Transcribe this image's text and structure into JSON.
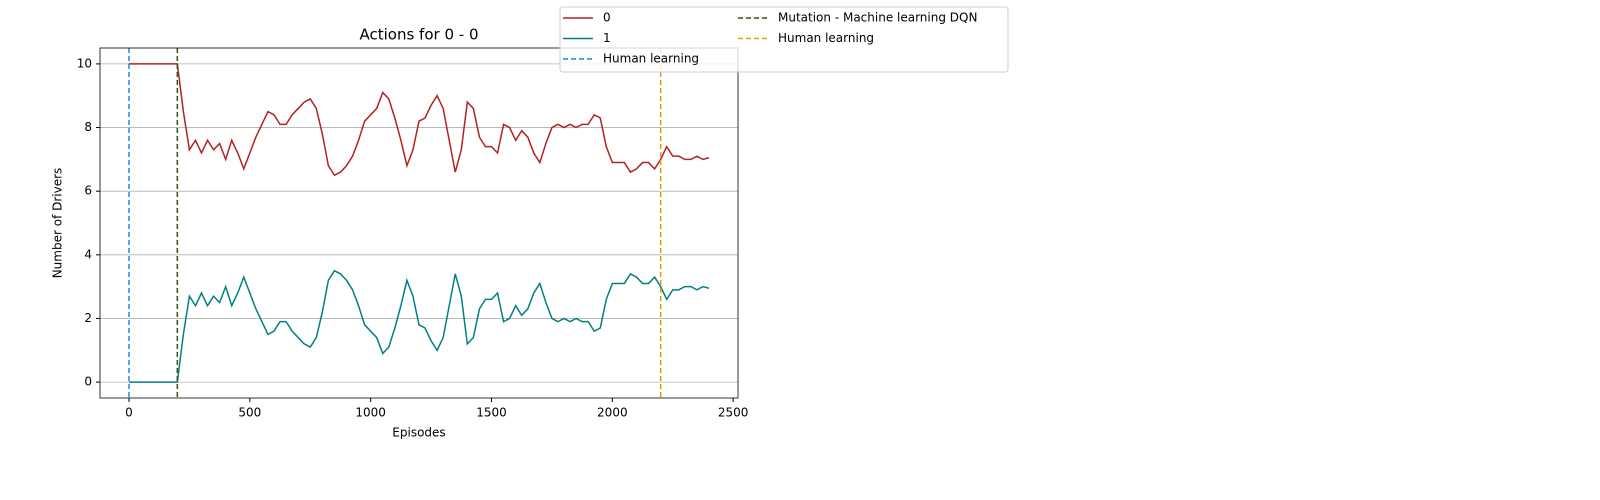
{
  "chart_data": {
    "type": "line",
    "title": "Actions for 0 - 0",
    "xlabel": "Episodes",
    "ylabel": "Number of Drivers",
    "x": [
      0,
      25,
      50,
      75,
      100,
      125,
      150,
      175,
      200,
      225,
      250,
      275,
      300,
      325,
      350,
      375,
      400,
      425,
      450,
      475,
      500,
      525,
      550,
      575,
      600,
      625,
      650,
      675,
      700,
      725,
      750,
      775,
      800,
      825,
      850,
      875,
      900,
      925,
      950,
      975,
      1000,
      1025,
      1050,
      1075,
      1100,
      1125,
      1150,
      1175,
      1200,
      1225,
      1250,
      1275,
      1300,
      1325,
      1350,
      1375,
      1400,
      1425,
      1450,
      1475,
      1500,
      1525,
      1550,
      1575,
      1600,
      1625,
      1650,
      1675,
      1700,
      1725,
      1750,
      1775,
      1800,
      1825,
      1850,
      1875,
      1900,
      1925,
      1950,
      1975,
      2000,
      2025,
      2050,
      2075,
      2100,
      2125,
      2150,
      2175,
      2200,
      2225,
      2250,
      2275,
      2300,
      2325,
      2350,
      2375,
      2400
    ],
    "series": [
      {
        "name": "0",
        "color": "#b22222",
        "values": [
          10,
          10,
          10,
          10,
          10,
          10,
          10,
          10,
          10,
          8.5,
          7.3,
          7.6,
          7.2,
          7.6,
          7.3,
          7.5,
          7.0,
          7.6,
          7.2,
          6.7,
          7.2,
          7.7,
          8.1,
          8.5,
          8.4,
          8.1,
          8.1,
          8.4,
          8.6,
          8.8,
          8.9,
          8.6,
          7.8,
          6.8,
          6.5,
          6.6,
          6.8,
          7.1,
          7.6,
          8.2,
          8.4,
          8.6,
          9.1,
          8.9,
          8.3,
          7.6,
          6.8,
          7.3,
          8.2,
          8.3,
          8.7,
          9.0,
          8.6,
          7.6,
          6.6,
          7.3,
          8.8,
          8.6,
          7.7,
          7.4,
          7.4,
          7.2,
          8.1,
          8.0,
          7.6,
          7.9,
          7.7,
          7.2,
          6.9,
          7.5,
          8.0,
          8.1,
          8.0,
          8.1,
          8.0,
          8.1,
          8.1,
          8.4,
          8.3,
          7.4,
          6.9,
          6.9,
          6.9,
          6.6,
          6.7,
          6.9,
          6.9,
          6.7,
          7.0,
          7.4,
          7.1,
          7.1,
          7.0,
          7.0,
          7.1,
          7.0,
          7.05
        ]
      },
      {
        "name": "1",
        "color": "#008080",
        "values": [
          0,
          0,
          0,
          0,
          0,
          0,
          0,
          0,
          0,
          1.5,
          2.7,
          2.4,
          2.8,
          2.4,
          2.7,
          2.5,
          3.0,
          2.4,
          2.8,
          3.3,
          2.8,
          2.3,
          1.9,
          1.5,
          1.6,
          1.9,
          1.9,
          1.6,
          1.4,
          1.2,
          1.1,
          1.4,
          2.2,
          3.2,
          3.5,
          3.4,
          3.2,
          2.9,
          2.4,
          1.8,
          1.6,
          1.4,
          0.9,
          1.1,
          1.7,
          2.4,
          3.2,
          2.7,
          1.8,
          1.7,
          1.3,
          1.0,
          1.4,
          2.4,
          3.4,
          2.7,
          1.2,
          1.4,
          2.3,
          2.6,
          2.6,
          2.8,
          1.9,
          2.0,
          2.4,
          2.1,
          2.3,
          2.8,
          3.1,
          2.5,
          2.0,
          1.9,
          2.0,
          1.9,
          2.0,
          1.9,
          1.9,
          1.6,
          1.7,
          2.6,
          3.1,
          3.1,
          3.1,
          3.4,
          3.3,
          3.1,
          3.1,
          3.3,
          3.0,
          2.6,
          2.9,
          2.9,
          3.0,
          3.0,
          2.9,
          3.0,
          2.95
        ]
      }
    ],
    "vlines": [
      {
        "name": "Human learning",
        "x": 0,
        "color": "#1e88e5"
      },
      {
        "name": "Mutation - Machine learning DQN",
        "x": 200,
        "color": "#2e5016"
      },
      {
        "name": "Human learning",
        "x": 2200,
        "color": "#e69f00"
      }
    ],
    "xlim": [
      -120,
      2520
    ],
    "ylim": [
      -0.5,
      10.5
    ],
    "xticks": [
      0,
      500,
      1000,
      1500,
      2000,
      2500
    ],
    "yticks": [
      0,
      2,
      4,
      6,
      8,
      10
    ],
    "grid": "y"
  }
}
